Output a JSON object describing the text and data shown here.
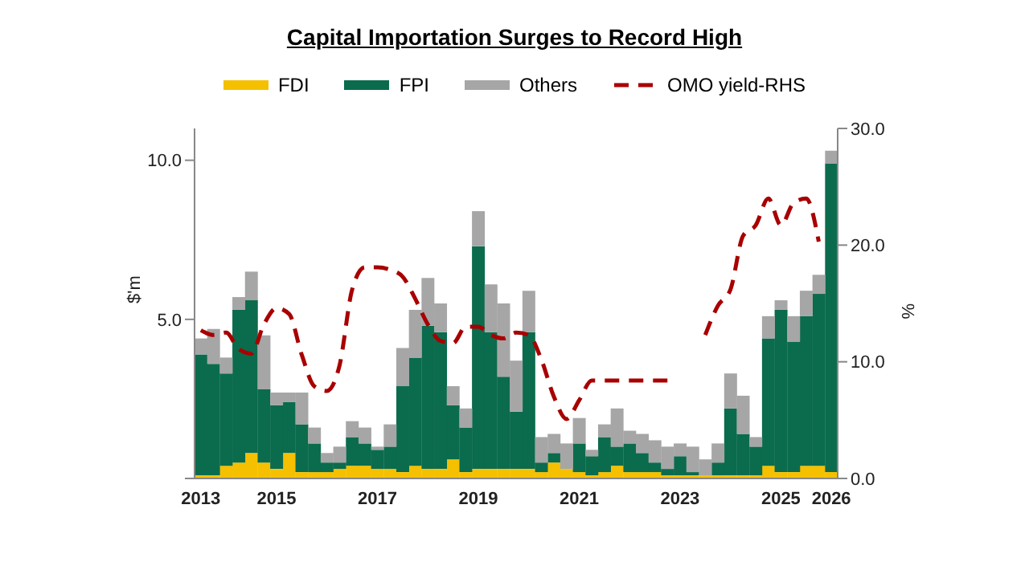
{
  "chart_data": {
    "type": "bar",
    "title": "Capital Importation Surges to Record High",
    "ylabel": "$'m",
    "y2label": "%",
    "categories": [
      "2013",
      null,
      null,
      null,
      null,
      null,
      "2015",
      null,
      null,
      null,
      null,
      null,
      null,
      null,
      "2017",
      null,
      null,
      null,
      null,
      null,
      null,
      null,
      "2019",
      null,
      null,
      null,
      null,
      null,
      null,
      null,
      "2021",
      null,
      null,
      null,
      null,
      null,
      null,
      null,
      "2023",
      null,
      null,
      null,
      null,
      null,
      null,
      null,
      "2025",
      null,
      null,
      null,
      "2026"
    ],
    "stacked": true,
    "legend": "top",
    "marker": "none",
    "ylim": [
      0,
      11
    ],
    "yticks": [
      {
        "value": 0,
        "label": null
      },
      {
        "value": 5,
        "label": "5.0"
      },
      {
        "value": 10,
        "label": "10.0"
      }
    ],
    "y2lim": [
      0,
      30
    ],
    "y2ticks": [
      {
        "value": 0,
        "label": "0.0"
      },
      {
        "value": 10,
        "label": "10.0"
      },
      {
        "value": 20,
        "label": "20.0"
      },
      {
        "value": 30,
        "label": "30.0"
      }
    ],
    "series": [
      {
        "name": "FDI",
        "color": "#f5c000",
        "values": [
          0.1,
          0.1,
          0.4,
          0.5,
          0.8,
          0.5,
          0.3,
          0.8,
          0.2,
          0.2,
          0.2,
          0.3,
          0.4,
          0.4,
          0.3,
          0.3,
          0.2,
          0.4,
          0.3,
          0.3,
          0.6,
          0.2,
          0.3,
          0.3,
          0.3,
          0.3,
          0.3,
          0.2,
          0.5,
          0.3,
          0.2,
          0.1,
          0.2,
          0.4,
          0.2,
          0.2,
          0.2,
          0.1,
          0.1,
          0.1,
          0.1,
          0.1,
          0.1,
          0.1,
          0.1,
          0.4,
          0.2,
          0.2,
          0.4,
          0.4,
          0.2
        ]
      },
      {
        "name": "FPI",
        "color": "#0b6b4d",
        "values": [
          3.8,
          3.5,
          2.9,
          4.8,
          4.8,
          2.3,
          2.0,
          1.6,
          1.5,
          0.9,
          0.3,
          0.2,
          0.9,
          0.7,
          0.6,
          0.7,
          2.7,
          3.4,
          4.5,
          4.3,
          1.7,
          1.4,
          7.0,
          4.3,
          2.9,
          1.8,
          4.3,
          0.3,
          0.3,
          0,
          0.9,
          0.6,
          1.1,
          0.6,
          0.9,
          0.6,
          0.3,
          0.2,
          0.6,
          0.1,
          0,
          0.4,
          2.1,
          1.3,
          0.9,
          4.0,
          5.1,
          4.1,
          4.7,
          5.4,
          9.7
        ]
      },
      {
        "name": "Others",
        "color": "#a6a6a6",
        "values": [
          0.5,
          1.1,
          0.5,
          0.4,
          0.9,
          1.7,
          0.4,
          0.3,
          1.0,
          0.5,
          0.3,
          0.5,
          0.5,
          0.5,
          0.1,
          0.7,
          1.2,
          1.5,
          1.5,
          0.9,
          0.6,
          0.6,
          1.1,
          1.5,
          2.3,
          1.6,
          1.3,
          0.8,
          0.6,
          0.8,
          0.8,
          0.2,
          0.4,
          1.2,
          0.4,
          0.6,
          0.7,
          0.7,
          0.4,
          0.8,
          0.5,
          0.6,
          1.1,
          1.2,
          0.3,
          0.7,
          0.3,
          0.8,
          0.8,
          0.6,
          0.4
        ]
      },
      {
        "name": "OMO yield-RHS",
        "type": "line",
        "axis": "y2",
        "line_style": "dashed",
        "color": "#a80000",
        "values": [
          12.7,
          12.3,
          12.5,
          11.1,
          10.7,
          13.2,
          14.6,
          14.1,
          10.6,
          7.9,
          7.5,
          9.7,
          16.2,
          18.1,
          18.1,
          17.9,
          17.3,
          15.4,
          13.2,
          11.8,
          11.6,
          13.0,
          13.0,
          12.3,
          12.0,
          12.5,
          12.3,
          10.2,
          7.0,
          5.1,
          6.7,
          8.4,
          8.4,
          8.4,
          8.4,
          8.4,
          8.4,
          8.4,
          null,
          null,
          12.3,
          14.8,
          16.2,
          20.8,
          21.7,
          24.0,
          21.7,
          23.6,
          24.0,
          20.3,
          null
        ]
      }
    ]
  }
}
